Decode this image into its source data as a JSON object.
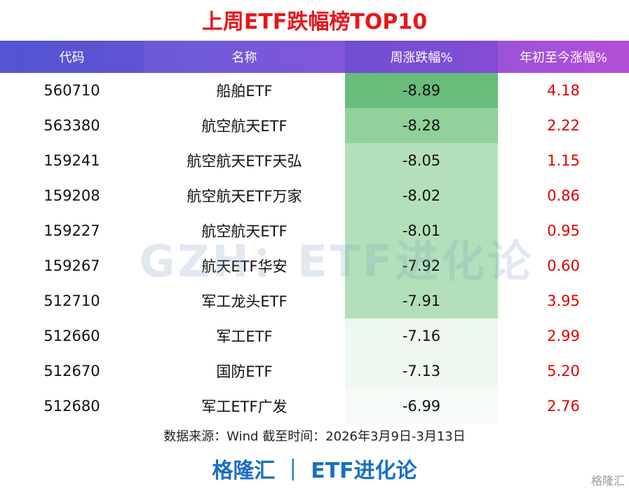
{
  "header": {
    "title": "上周ETF跌幅榜TOP10"
  },
  "table": {
    "columns": [
      "代码",
      "名称",
      "周涨跌幅%",
      "年初至今涨幅%"
    ],
    "rows": [
      [
        "560710",
        "船舶ETF",
        "-8.89",
        "4.18"
      ],
      [
        "563380",
        "航空航天ETF",
        "-8.28",
        "2.22"
      ],
      [
        "159241",
        "航空航天ETF天弘",
        "-8.05",
        "1.15"
      ],
      [
        "159208",
        "航空航天ETF万家",
        "-8.02",
        "0.86"
      ],
      [
        "159227",
        "航空航天ETF",
        "-8.01",
        "0.95"
      ],
      [
        "159267",
        "航天ETF华安",
        "-7.92",
        "0.60"
      ],
      [
        "512710",
        "军工龙头ETF",
        "-7.91",
        "3.95"
      ],
      [
        "512660",
        "军工ETF",
        "-7.16",
        "2.99"
      ],
      [
        "512670",
        "国防ETF",
        "-7.13",
        "5.20"
      ],
      [
        "512680",
        "军工ETF广发",
        "-6.99",
        "2.76"
      ]
    ]
  },
  "source": "数据来源：Wind 截至时间：2026年3月9日-3月13日",
  "footer": {
    "brand": "格隆汇 ｜ ETF进化论"
  },
  "watermark": "GZH：ETF进化论",
  "logo": "格隆汇"
}
